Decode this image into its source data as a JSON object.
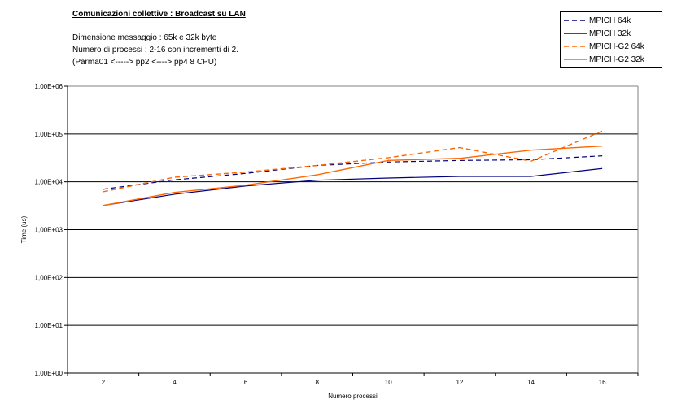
{
  "chart_data": {
    "type": "line",
    "title": "Comunicazioni collettive : Broadcast su LAN",
    "subtitle": [
      "Dimensione messaggio : 65k e 32k byte",
      "Numero di processi : 2-16 con incrementi di 2.",
      "(Parma01 <-----> pp2 <----> pp4      8 CPU)"
    ],
    "xlabel": "Numero processi",
    "ylabel": "Time (us)",
    "yscale": "log",
    "ylim": [
      1,
      1000000
    ],
    "yticks": [
      "1,00E+00",
      "1,00E+01",
      "1,00E+02",
      "1,00E+03",
      "1,00E+04",
      "1,00E+05",
      "1,00E+06"
    ],
    "categories": [
      "2",
      "4",
      "6",
      "8",
      "10",
      "12",
      "14",
      "16"
    ],
    "grid": true,
    "legend_position": "top-right",
    "series": [
      {
        "name": "MPICH 64k",
        "color": "#000080",
        "dash": true,
        "values": [
          7000,
          11000,
          15000,
          22000,
          26000,
          28000,
          29000,
          35000
        ]
      },
      {
        "name": "MPICH 32k",
        "color": "#000080",
        "dash": false,
        "values": [
          3200,
          5500,
          8200,
          10800,
          12000,
          13000,
          13000,
          19000
        ]
      },
      {
        "name": "MPICH-G2 64k",
        "color": "#FF6600",
        "dash": true,
        "values": [
          6200,
          12500,
          16000,
          22000,
          32000,
          52000,
          27000,
          115000
        ]
      },
      {
        "name": "MPICH-G2 32k",
        "color": "#FF6600",
        "dash": false,
        "values": [
          3200,
          6000,
          8500,
          14000,
          28000,
          31000,
          46000,
          56000
        ]
      }
    ]
  }
}
